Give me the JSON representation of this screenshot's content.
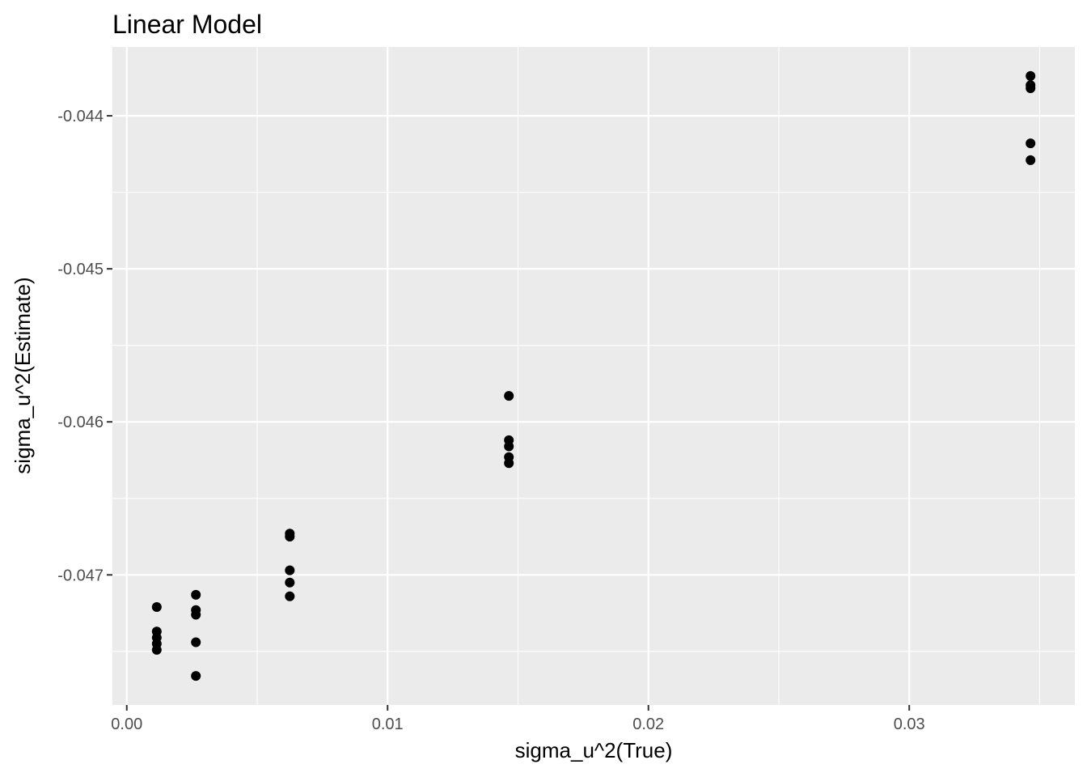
{
  "chart_data": {
    "type": "scatter",
    "title": "Linear Model",
    "xlabel": "sigma_u^2(True)",
    "ylabel": "sigma_u^2(Estimate)",
    "xlim": [
      -0.00055,
      0.03635
    ],
    "ylim": [
      -0.04785,
      -0.04355
    ],
    "x_ticks": [
      0.0,
      0.01,
      0.02,
      0.03
    ],
    "x_tick_labels": [
      "0.00",
      "0.01",
      "0.02",
      "0.03"
    ],
    "y_ticks": [
      -0.044,
      -0.045,
      -0.046,
      -0.047
    ],
    "y_tick_labels": [
      "-0.044",
      "-0.045",
      "-0.046",
      "-0.047"
    ],
    "grid": true,
    "panel_background": "#ebebeb",
    "point_color": "#000000",
    "points": [
      {
        "x": 0.00115,
        "y": -0.04721
      },
      {
        "x": 0.00115,
        "y": -0.04737
      },
      {
        "x": 0.00115,
        "y": -0.04741
      },
      {
        "x": 0.00115,
        "y": -0.04745
      },
      {
        "x": 0.00115,
        "y": -0.04749
      },
      {
        "x": 0.00265,
        "y": -0.04713
      },
      {
        "x": 0.00265,
        "y": -0.04723
      },
      {
        "x": 0.00265,
        "y": -0.04726
      },
      {
        "x": 0.00265,
        "y": -0.04744
      },
      {
        "x": 0.00265,
        "y": -0.04766
      },
      {
        "x": 0.00625,
        "y": -0.04673
      },
      {
        "x": 0.00625,
        "y": -0.04675
      },
      {
        "x": 0.00625,
        "y": -0.04697
      },
      {
        "x": 0.00625,
        "y": -0.04705
      },
      {
        "x": 0.00625,
        "y": -0.04714
      },
      {
        "x": 0.01465,
        "y": -0.04583
      },
      {
        "x": 0.01465,
        "y": -0.04612
      },
      {
        "x": 0.01465,
        "y": -0.04616
      },
      {
        "x": 0.01465,
        "y": -0.04623
      },
      {
        "x": 0.01465,
        "y": -0.04627
      },
      {
        "x": 0.03465,
        "y": -0.04374
      },
      {
        "x": 0.03465,
        "y": -0.0438
      },
      {
        "x": 0.03465,
        "y": -0.04382
      },
      {
        "x": 0.03465,
        "y": -0.04418
      },
      {
        "x": 0.03465,
        "y": -0.04429
      }
    ]
  }
}
